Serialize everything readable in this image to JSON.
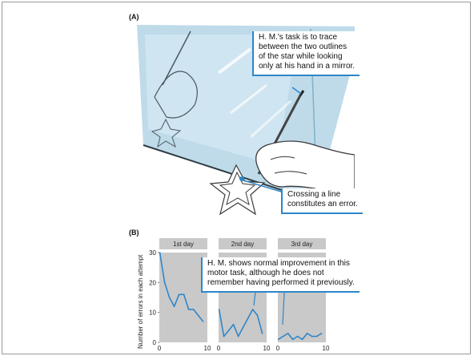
{
  "panel_a": {
    "label": "(A)",
    "callout_top": [
      "H. M.'s task is to trace",
      "between the two outlines",
      "of the star while looking",
      "only at his hand in a mirror."
    ],
    "callout_bottom": [
      "Crossing a line",
      "constitutes an error."
    ]
  },
  "panel_b": {
    "label": "(B)",
    "callout": [
      "H. M. shows normal improvement in this",
      "motor task, although he does not",
      "remember having performed it previously."
    ]
  },
  "colors": {
    "accent": "#2f86c8",
    "plot_bg": "#c9c9c9",
    "mirror": "#bfdbea",
    "line": "#2f86c8"
  },
  "chart_data": {
    "type": "line",
    "ylabel": "Number of errors in each attempt",
    "ylim": [
      0,
      30
    ],
    "yticks": [
      "0",
      "10",
      "20",
      "30"
    ],
    "panels": [
      {
        "title": "1st day",
        "xticks": [
          "0",
          "10"
        ],
        "x": [
          1,
          2,
          3,
          4,
          5,
          6,
          7,
          8,
          9,
          10
        ],
        "values": [
          30,
          20,
          15,
          12,
          16,
          16,
          11,
          11,
          9,
          7
        ]
      },
      {
        "title": "2nd day",
        "xticks": [
          "0",
          "10"
        ],
        "x": [
          1,
          2,
          3,
          4,
          5,
          6,
          7,
          8,
          9,
          10
        ],
        "values": [
          11,
          2,
          4,
          6,
          2,
          5,
          8,
          11,
          9,
          3
        ]
      },
      {
        "title": "3rd day",
        "xticks": [
          "0",
          "10"
        ],
        "x": [
          1,
          2,
          3,
          4,
          5,
          6,
          7,
          8,
          9,
          10
        ],
        "values": [
          1,
          2,
          3,
          1,
          2,
          1,
          3,
          2,
          2,
          3
        ]
      }
    ]
  }
}
